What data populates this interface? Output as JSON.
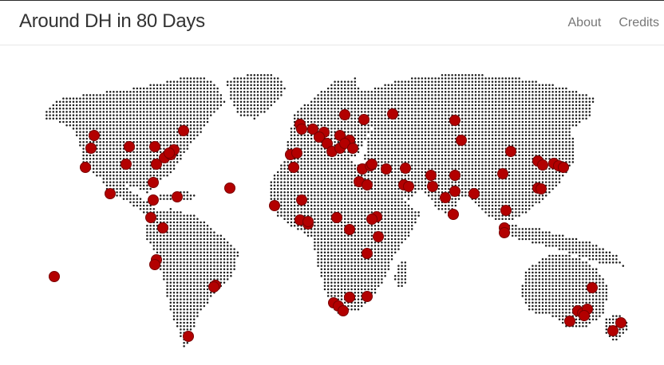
{
  "header": {
    "title": "Around DH in 80 Days",
    "nav": [
      {
        "label": "About"
      },
      {
        "label": "Credits"
      }
    ]
  },
  "map": {
    "land_color": "#1a1a1a",
    "marker_fill": "#b30000",
    "marker_stroke": "#7a0000",
    "background": "#ffffff",
    "marker_count": 110
  }
}
